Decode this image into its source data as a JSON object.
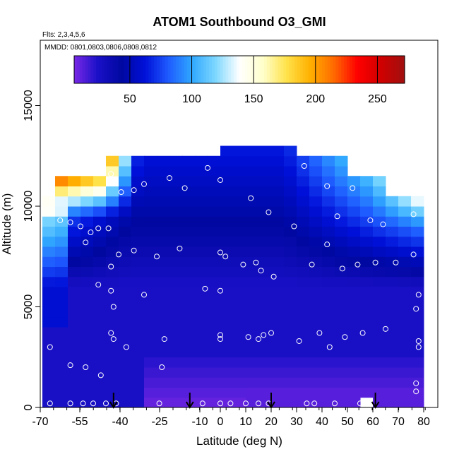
{
  "chart_data": {
    "type": "heatmap",
    "title": "ATOM1 Southbound O3_GMI",
    "subtitle_flights": "Flts: 2,3,4,5,6",
    "subtitle_dates": "MMDD: 0801,0803,0806,0808,0812",
    "xlabel": "Latitude (deg N)",
    "ylabel": "Altitude (m)",
    "xlim": [
      -70,
      80
    ],
    "ylim": [
      0,
      17500
    ],
    "x_ticks": [
      -70,
      -55,
      -40,
      -25,
      -10,
      0,
      10,
      20,
      30,
      40,
      50,
      60,
      70,
      80
    ],
    "y_ticks": [
      0,
      5000,
      10000,
      15000
    ],
    "colorbar": {
      "range": [
        5,
        272
      ],
      "ticks": [
        50,
        100,
        150,
        200,
        250
      ],
      "colors": [
        "#7a28e6",
        "#1a10c8",
        "#0008a0",
        "#0010d8",
        "#1f5cff",
        "#30a8ff",
        "#7fd8ff",
        "#ffffff",
        "#ffffcc",
        "#ffe24a",
        "#ffb000",
        "#ff6a00",
        "#ff0000",
        "#d00000",
        "#a01010"
      ]
    },
    "latitude_bins": [
      -67.5,
      -62.5,
      -57.5,
      -52.5,
      -47.5,
      -42.5,
      -37.5,
      -32.5,
      -27.5,
      -22.5,
      -17.5,
      -12.5,
      -7.5,
      -2.5,
      2.5,
      7.5,
      12.5,
      17.5,
      22.5,
      27.5,
      32.5,
      37.5,
      42.5,
      47.5,
      52.5,
      57.5,
      62.5,
      67.5,
      72.5,
      77.5
    ],
    "altitude_bins": [
      250,
      750,
      1250,
      1750,
      2250,
      2750,
      3250,
      3750,
      4250,
      4750,
      5250,
      5750,
      6250,
      6750,
      7250,
      7750,
      8250,
      8750,
      9250,
      9750,
      10250,
      10750,
      11250,
      11750,
      12250,
      12750,
      13250
    ],
    "sample_points": [
      {
        "x": -67,
        "y": 200
      },
      {
        "x": -59,
        "y": 200
      },
      {
        "x": -54,
        "y": 200
      },
      {
        "x": -50,
        "y": 200
      },
      {
        "x": -45,
        "y": 200
      },
      {
        "x": -41,
        "y": 200
      },
      {
        "x": -24,
        "y": 200
      },
      {
        "x": -7,
        "y": 200
      },
      {
        "x": 0,
        "y": 200
      },
      {
        "x": 4,
        "y": 200
      },
      {
        "x": 10,
        "y": 200
      },
      {
        "x": 15,
        "y": 200
      },
      {
        "x": 19,
        "y": 200
      },
      {
        "x": 34,
        "y": 200
      },
      {
        "x": 37,
        "y": 200
      },
      {
        "x": 45,
        "y": 200
      },
      {
        "x": 55,
        "y": 200
      },
      {
        "x": 77,
        "y": 800
      },
      {
        "x": 77,
        "y": 1200
      },
      {
        "x": -67,
        "y": 3000
      },
      {
        "x": -59,
        "y": 2100
      },
      {
        "x": -53,
        "y": 2000
      },
      {
        "x": -47,
        "y": 1600
      },
      {
        "x": -37,
        "y": 3000
      },
      {
        "x": -23,
        "y": 2000
      },
      {
        "x": -43,
        "y": 3700
      },
      {
        "x": -42,
        "y": 3400
      },
      {
        "x": -22,
        "y": 3400
      },
      {
        "x": 0,
        "y": 3600
      },
      {
        "x": 0,
        "y": 3400
      },
      {
        "x": 11,
        "y": 3500
      },
      {
        "x": 15,
        "y": 3400
      },
      {
        "x": 17,
        "y": 3600
      },
      {
        "x": 20,
        "y": 3700
      },
      {
        "x": 31,
        "y": 3300
      },
      {
        "x": 39,
        "y": 3700
      },
      {
        "x": 43,
        "y": 3000
      },
      {
        "x": 49,
        "y": 3500
      },
      {
        "x": 56,
        "y": 3700
      },
      {
        "x": 65,
        "y": 3900
      },
      {
        "x": 78,
        "y": 3000
      },
      {
        "x": 78,
        "y": 3300
      },
      {
        "x": -42,
        "y": 5000
      },
      {
        "x": -43,
        "y": 5800
      },
      {
        "x": -48,
        "y": 6100
      },
      {
        "x": -30,
        "y": 5600
      },
      {
        "x": -6,
        "y": 5900
      },
      {
        "x": 0,
        "y": 5800
      },
      {
        "x": 77,
        "y": 4900
      },
      {
        "x": 78,
        "y": 5600
      },
      {
        "x": -43,
        "y": 7000
      },
      {
        "x": -40,
        "y": 7600
      },
      {
        "x": -34,
        "y": 7800
      },
      {
        "x": -25,
        "y": 7500
      },
      {
        "x": -16,
        "y": 7900
      },
      {
        "x": 0,
        "y": 7700
      },
      {
        "x": 2,
        "y": 7500
      },
      {
        "x": 9,
        "y": 7100
      },
      {
        "x": 14,
        "y": 7200
      },
      {
        "x": 16,
        "y": 6800
      },
      {
        "x": 21,
        "y": 6500
      },
      {
        "x": 36,
        "y": 7100
      },
      {
        "x": 42,
        "y": 8100
      },
      {
        "x": 48,
        "y": 6900
      },
      {
        "x": 54,
        "y": 7100
      },
      {
        "x": 61,
        "y": 7200
      },
      {
        "x": 69,
        "y": 7200
      },
      {
        "x": 76,
        "y": 7600
      },
      {
        "x": -63,
        "y": 9300
      },
      {
        "x": -59,
        "y": 9200
      },
      {
        "x": -55,
        "y": 9000
      },
      {
        "x": -51,
        "y": 8700
      },
      {
        "x": -48,
        "y": 8900
      },
      {
        "x": -44,
        "y": 8900
      },
      {
        "x": -53,
        "y": 8200
      },
      {
        "x": 12,
        "y": 10400
      },
      {
        "x": 19,
        "y": 9700
      },
      {
        "x": 29,
        "y": 9000
      },
      {
        "x": 46,
        "y": 9500
      },
      {
        "x": 59,
        "y": 9300
      },
      {
        "x": 64,
        "y": 9100
      },
      {
        "x": 76,
        "y": 9600
      },
      {
        "x": -39,
        "y": 10700
      },
      {
        "x": -34,
        "y": 10800
      },
      {
        "x": -30,
        "y": 11100
      },
      {
        "x": -20,
        "y": 11400
      },
      {
        "x": -14,
        "y": 10900
      },
      {
        "x": 0,
        "y": 11300
      },
      {
        "x": 42,
        "y": 11000
      },
      {
        "x": 52,
        "y": 10900
      },
      {
        "x": -43,
        "y": 11600
      },
      {
        "x": -5,
        "y": 11900
      },
      {
        "x": 33,
        "y": 12000
      },
      {
        "x": 73,
        "y": 11000
      }
    ],
    "arrow_latitudes": [
      -42,
      -12,
      20,
      61
    ]
  }
}
